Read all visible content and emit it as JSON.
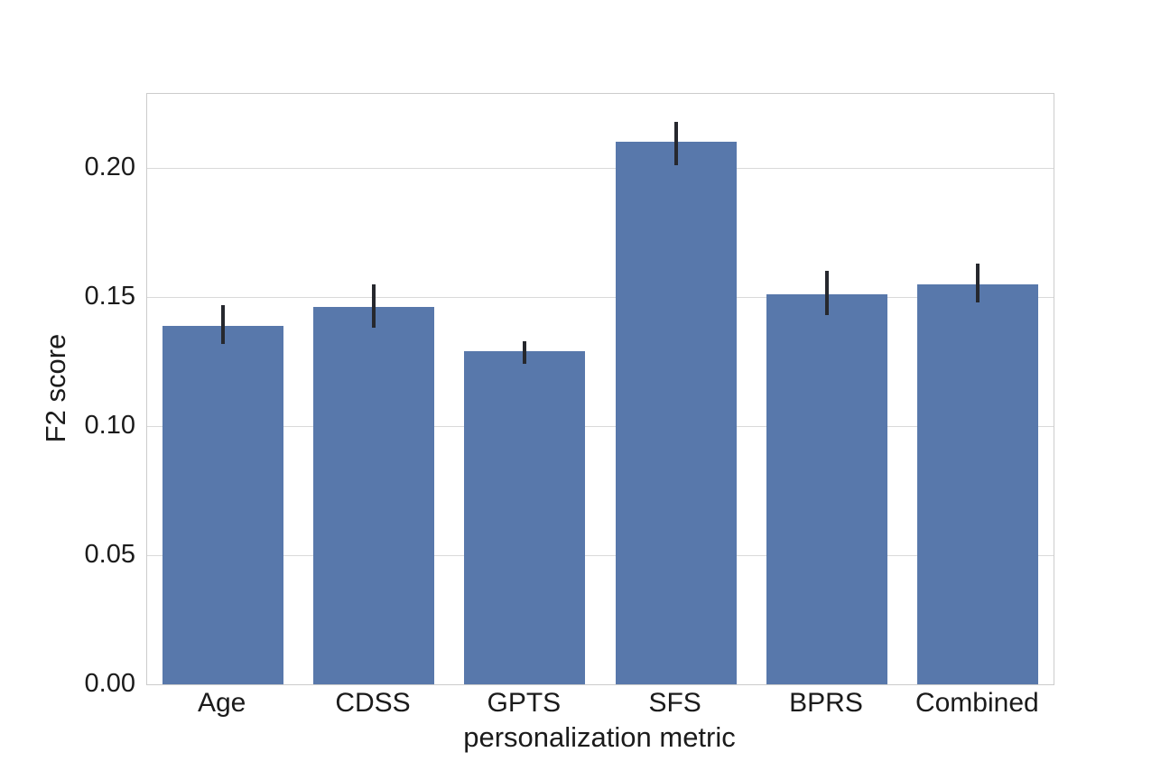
{
  "chart_data": {
    "type": "bar",
    "title": "",
    "categories": [
      "Age",
      "CDSS",
      "GPTS",
      "SFS",
      "BPRS",
      "Combined"
    ],
    "values": [
      0.139,
      0.146,
      0.129,
      0.21,
      0.151,
      0.155
    ],
    "series": [
      {
        "name": "F2 score",
        "values": [
          0.139,
          0.146,
          0.129,
          0.21,
          0.151,
          0.155
        ],
        "error_low": [
          0.132,
          0.138,
          0.124,
          0.201,
          0.143,
          0.148
        ],
        "error_high": [
          0.147,
          0.155,
          0.133,
          0.218,
          0.16,
          0.163
        ]
      }
    ],
    "xlabel": "personalization metric",
    "ylabel": "F2 score",
    "ylim": [
      0,
      0.2287
    ],
    "yticks": [
      {
        "label": "0.00",
        "value": 0.0
      },
      {
        "label": "0.05",
        "value": 0.05
      },
      {
        "label": "0.10",
        "value": 0.1
      },
      {
        "label": "0.15",
        "value": 0.15
      },
      {
        "label": "0.20",
        "value": 0.2
      }
    ],
    "grid": "horizontal",
    "legend": "none",
    "colors": {
      "bar_fill": "#5878ab",
      "error_bar": "#26282e",
      "gridline": "#d9d9d9",
      "spine": "#cccccc",
      "text": "#1b1b1b",
      "background": "#ffffff"
    }
  }
}
